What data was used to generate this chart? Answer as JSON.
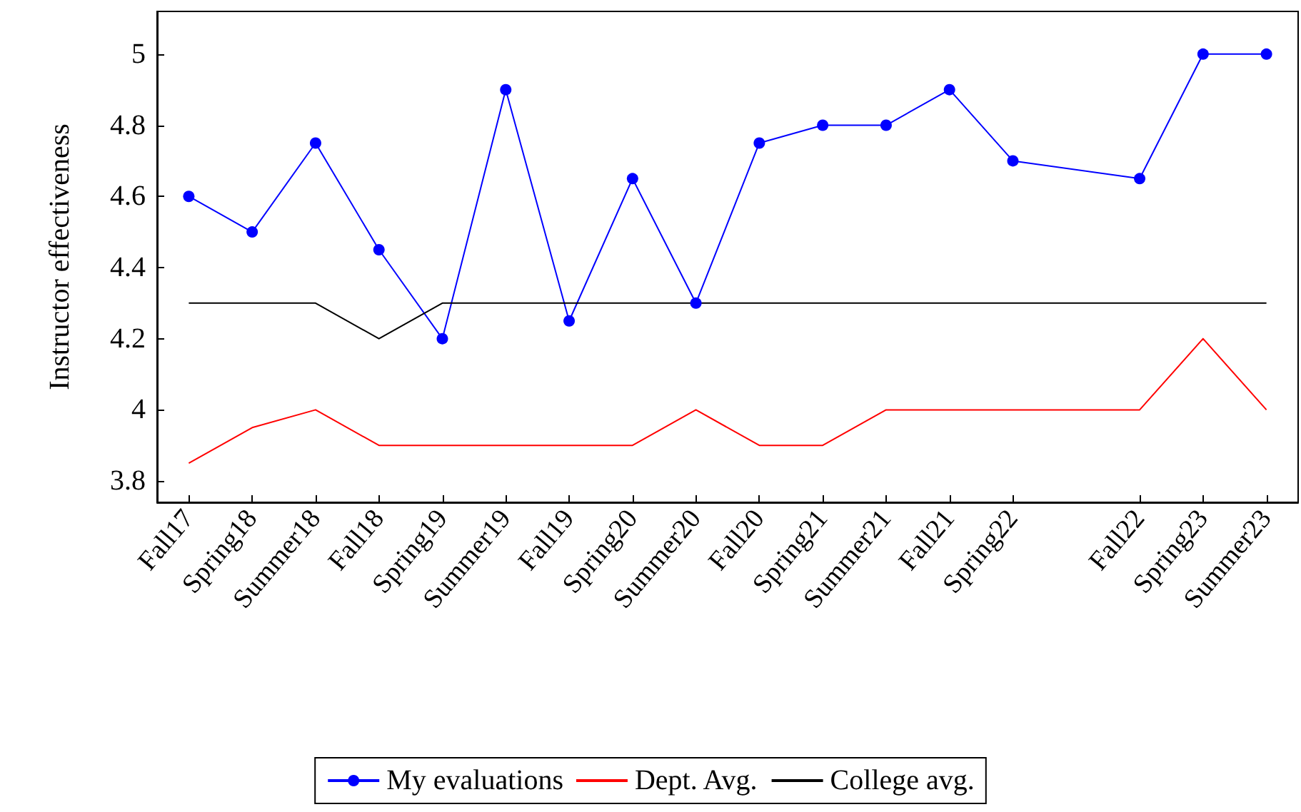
{
  "chart_data": {
    "type": "line",
    "ylabel": "Instructor effectiveness",
    "categories": [
      "Fall17",
      "Spring18",
      "Summer18",
      "Fall18",
      "Spring19",
      "Summer19",
      "Fall19",
      "Spring20",
      "Summer20",
      "Fall20",
      "Spring21",
      "Summer21",
      "Fall21",
      "Spring22",
      null,
      "Fall22",
      "Spring23",
      "Summer23"
    ],
    "ylim": [
      3.74,
      5.12
    ],
    "yticks": [
      3.8,
      4,
      4.2,
      4.4,
      4.6,
      4.8,
      5
    ],
    "grid": false,
    "legend": "bottom",
    "series": [
      {
        "name": "My evaluations",
        "color": "#0000ff",
        "marker": "circle",
        "values": [
          4.6,
          4.5,
          4.75,
          4.45,
          4.2,
          4.9,
          4.25,
          4.65,
          4.3,
          4.75,
          4.8,
          4.8,
          4.9,
          4.7,
          null,
          4.65,
          5,
          5
        ]
      },
      {
        "name": "Dept. Avg.",
        "color": "#ff0000",
        "marker": "none",
        "values": [
          3.85,
          3.95,
          4.0,
          3.9,
          3.9,
          3.9,
          3.9,
          3.9,
          4.0,
          3.9,
          3.9,
          4.0,
          4.0,
          4.0,
          null,
          4.0,
          4.2,
          4.0
        ]
      },
      {
        "name": "College avg.",
        "color": "#000000",
        "marker": "none",
        "values": [
          4.3,
          4.3,
          4.3,
          4.2,
          4.3,
          4.3,
          4.3,
          4.3,
          4.3,
          4.3,
          4.3,
          4.3,
          4.3,
          4.3,
          null,
          4.3,
          4.3,
          4.3
        ]
      }
    ]
  }
}
